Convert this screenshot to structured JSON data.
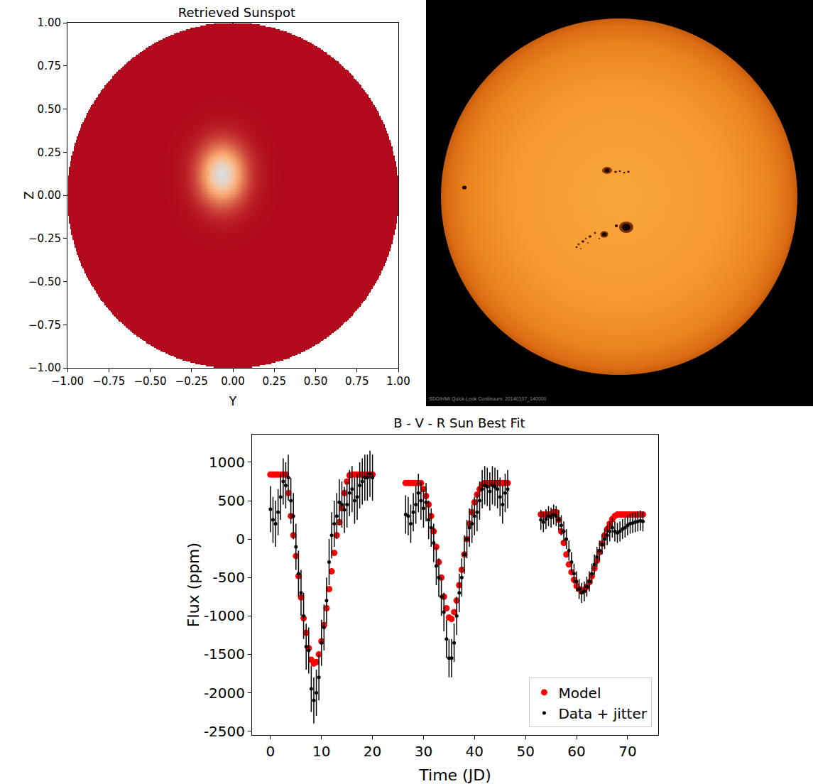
{
  "chart_data": [
    {
      "type": "heatmap",
      "title": "Retrieved Sunspot",
      "x_label": "Y",
      "y_label": "Z",
      "xlim": [
        -1,
        1
      ],
      "ylim": [
        -1,
        1
      ],
      "xticks": [
        {
          "value": -1,
          "label": "−1.00"
        },
        {
          "value": -0.75,
          "label": "−0.75"
        },
        {
          "value": -0.5,
          "label": "−0.50"
        },
        {
          "value": -0.25,
          "label": "−0.25"
        },
        {
          "value": 0,
          "label": "0.00"
        },
        {
          "value": 0.25,
          "label": "0.25"
        },
        {
          "value": 0.5,
          "label": "0.50"
        },
        {
          "value": 0.75,
          "label": "0.75"
        },
        {
          "value": 1,
          "label": "1.00"
        }
      ],
      "yticks": [
        {
          "value": -1,
          "label": "−1.00"
        },
        {
          "value": -0.75,
          "label": "−0.75"
        },
        {
          "value": -0.5,
          "label": "−0.50"
        },
        {
          "value": -0.25,
          "label": "−0.25"
        },
        {
          "value": 0,
          "label": "0.00"
        },
        {
          "value": 0.25,
          "label": "0.25"
        },
        {
          "value": 0.5,
          "label": "0.50"
        },
        {
          "value": 0.75,
          "label": "0.75"
        },
        {
          "value": 1,
          "label": "1.00"
        }
      ],
      "color": "Plasma",
      "star_radius": 1,
      "spot": {
        "center": [
          -0.065,
          0.12
        ],
        "size": [
          0.1,
          0.125
        ]
      },
      "grid": false
    },
    {
      "type": "scatter",
      "title": "B - V - R Sun Best Fit",
      "x_label": "Time (JD)",
      "y_label": "Flux (ppm)",
      "xlim": [
        -3.6,
        76
      ],
      "ylim": [
        -2550,
        1360
      ],
      "xticks": [
        0,
        10,
        20,
        30,
        40,
        50,
        60,
        70
      ],
      "yticks": [
        -2500,
        -2000,
        -1500,
        -1000,
        -500,
        0,
        500,
        1000
      ],
      "legend": "lower right",
      "grid": false,
      "x": [
        0,
        0.5,
        1,
        1.5,
        2,
        2.5,
        3,
        3.5,
        4,
        4.5,
        5,
        5.5,
        6,
        6.5,
        7,
        7.5,
        8,
        8.5,
        9,
        9.5,
        10,
        10.5,
        11,
        11.5,
        12,
        12.5,
        13,
        13.5,
        14,
        14.5,
        15,
        15.5,
        16,
        16.5,
        17,
        17.5,
        18,
        18.5,
        19,
        19.5,
        20,
        26.5,
        27,
        27.5,
        28,
        28.5,
        29,
        29.5,
        30,
        30.5,
        31,
        31.5,
        32,
        32.5,
        33,
        33.5,
        34,
        34.5,
        35,
        35.5,
        36,
        36.5,
        37,
        37.5,
        38,
        38.5,
        39,
        39.5,
        40,
        40.5,
        41,
        41.5,
        42,
        42.5,
        43,
        43.5,
        44,
        44.5,
        45,
        45.5,
        46,
        46.5,
        53,
        53.5,
        54,
        54.5,
        55,
        55.5,
        56,
        56.5,
        57,
        57.5,
        58,
        58.5,
        59,
        59.5,
        60,
        60.5,
        61,
        61.5,
        62,
        62.5,
        63,
        63.5,
        64,
        64.5,
        65,
        65.5,
        66,
        66.5,
        67,
        67.5,
        68,
        68.5,
        69,
        69.5,
        70,
        70.5,
        71,
        71.5,
        72,
        72.5,
        73
      ],
      "series": [
        {
          "name": "Model",
          "color": "#ff0000",
          "marker": "circle",
          "values": [
            840,
            840,
            840,
            840,
            840,
            840,
            840,
            600,
            300,
            50,
            -220,
            -480,
            -760,
            -1030,
            -1220,
            -1420,
            -1570,
            -1620,
            -1600,
            -1500,
            -1330,
            -1120,
            -900,
            -650,
            -420,
            -180,
            50,
            220,
            400,
            600,
            750,
            830,
            840,
            840,
            840,
            840,
            840,
            840,
            840,
            840,
            840,
            730,
            730,
            730,
            730,
            730,
            730,
            730,
            650,
            560,
            450,
            300,
            100,
            -100,
            -300,
            -500,
            -750,
            -900,
            -1020,
            -1040,
            -950,
            -800,
            -600,
            -400,
            -200,
            0,
            200,
            350,
            480,
            580,
            650,
            710,
            730,
            730,
            730,
            730,
            730,
            730,
            730,
            730,
            730,
            730,
            320,
            320,
            320,
            320,
            320,
            350,
            350,
            250,
            100,
            -50,
            -200,
            -330,
            -430,
            -530,
            -610,
            -650,
            -680,
            -660,
            -620,
            -560,
            -480,
            -380,
            -280,
            -170,
            -60,
            50,
            130,
            200,
            260,
            300,
            320,
            320,
            320,
            320,
            320,
            320,
            320,
            320,
            320,
            320,
            320
          ]
        },
        {
          "name": "Data + jitter",
          "color": "#000000",
          "marker": "circle",
          "values": [
            390,
            250,
            200,
            350,
            550,
            750,
            700,
            800,
            500,
            300,
            -100,
            -450,
            -700,
            -1000,
            -1400,
            -1450,
            -1950,
            -2100,
            -2000,
            -1800,
            -1350,
            -1150,
            -800,
            -300,
            50,
            200,
            300,
            480,
            450,
            380,
            450,
            600,
            650,
            500,
            550,
            700,
            750,
            800,
            800,
            850,
            800,
            320,
            300,
            200,
            350,
            450,
            600,
            500,
            400,
            480,
            250,
            150,
            -50,
            -350,
            -500,
            -750,
            -950,
            -1300,
            -1550,
            -1550,
            -1350,
            -1000,
            -700,
            -500,
            -200,
            0,
            150,
            200,
            300,
            350,
            500,
            650,
            700,
            680,
            620,
            700,
            680,
            650,
            550,
            450,
            600,
            650,
            250,
            220,
            260,
            300,
            280,
            320,
            300,
            250,
            180,
            100,
            0,
            -150,
            -300,
            -450,
            -550,
            -650,
            -700,
            -680,
            -620,
            -550,
            -450,
            -330,
            -230,
            -150,
            -70,
            0,
            50,
            100,
            150,
            100,
            80,
            100,
            130,
            150,
            180,
            200,
            210,
            220,
            230,
            240,
            230
          ],
          "errors": [
            300,
            300,
            300,
            300,
            300,
            300,
            300,
            300,
            300,
            300,
            300,
            300,
            300,
            300,
            300,
            300,
            300,
            300,
            300,
            300,
            300,
            300,
            300,
            300,
            300,
            300,
            300,
            300,
            300,
            300,
            300,
            300,
            300,
            300,
            300,
            300,
            300,
            300,
            300,
            300,
            300,
            250,
            250,
            250,
            250,
            250,
            250,
            250,
            250,
            250,
            250,
            250,
            250,
            250,
            250,
            250,
            250,
            250,
            250,
            250,
            250,
            250,
            250,
            250,
            250,
            250,
            250,
            250,
            250,
            250,
            250,
            250,
            250,
            250,
            250,
            250,
            250,
            250,
            250,
            250,
            250,
            250,
            130,
            130,
            130,
            130,
            130,
            130,
            130,
            130,
            130,
            130,
            130,
            130,
            130,
            130,
            130,
            130,
            130,
            130,
            130,
            130,
            130,
            130,
            130,
            130,
            130,
            130,
            130,
            130,
            130,
            130,
            130,
            130,
            130,
            130,
            130,
            130,
            130,
            130,
            130,
            130,
            130
          ]
        }
      ]
    }
  ],
  "photo": {
    "caption": "SDO/HMI Quick-Look Continuum: 20140107_140000"
  }
}
